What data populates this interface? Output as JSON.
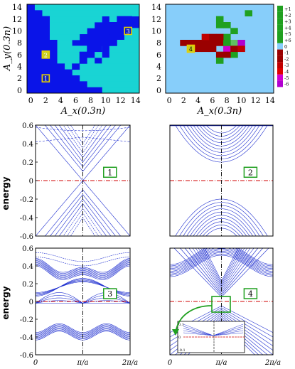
{
  "top": {
    "left": {
      "ylabel": "A_y(0.3n)",
      "xlabel": "A_x(0.3n)",
      "ticks": [
        "0",
        "2",
        "4",
        "6",
        "8",
        "10",
        "12",
        "14"
      ],
      "markers": [
        {
          "label": "1",
          "ax": 2,
          "ay": 2
        },
        {
          "label": "2",
          "ax": 2,
          "ay": 6
        },
        {
          "label": "3",
          "ax": 13,
          "ay": 10
        }
      ],
      "dark_color": "#0a14e8",
      "light_color": "#19d4d4"
    },
    "right": {
      "xlabel": "A_x(0.3n)",
      "ticks": [
        "0",
        "2",
        "4",
        "6",
        "8",
        "10",
        "12",
        "14"
      ],
      "marker": {
        "label": "4",
        "ax": 3,
        "ay": 7
      },
      "background_color": "#87cefa",
      "colorbar": [
        "+1",
        "+2",
        "+3",
        "+4",
        "+5",
        "+6",
        "0",
        "-1",
        "-2",
        "-3",
        "-4",
        "-5",
        "-6"
      ]
    }
  },
  "bands": {
    "ylabel": "energy",
    "yticks_tall": [
      "0.6",
      "0.4",
      "0.2",
      "0",
      "-0.2",
      "-0.4",
      "-0.6"
    ],
    "yticks_bottom": [
      "0.6",
      "0.4",
      "0.2",
      "0",
      "-0.2",
      "-0.4",
      "-0.6"
    ],
    "xticks": [
      "0",
      "π/a",
      "2π/a"
    ],
    "panel_labels": [
      "1",
      "2",
      "3",
      "4"
    ],
    "inset_yticks": [
      "0.1",
      "0",
      "-0.1"
    ],
    "line_color": "#2030d0",
    "fermi_color": "#d00000",
    "label_color": "#20a020"
  }
}
